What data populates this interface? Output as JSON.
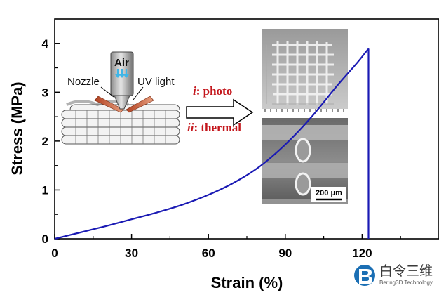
{
  "chart_data": {
    "type": "line",
    "xlabel": "Strain (%)",
    "ylabel": "Stress (MPa)",
    "xlim": [
      0,
      150
    ],
    "ylim": [
      0,
      4.5
    ],
    "xticks": [
      0,
      30,
      60,
      90,
      120
    ],
    "yticks": [
      0,
      1,
      2,
      3,
      4
    ],
    "grid": false,
    "series": [
      {
        "color": "#1a1ab4",
        "x": [
          0,
          10,
          20,
          30,
          40,
          50,
          60,
          70,
          80,
          90,
          100,
          110,
          118,
          122,
          122.5,
          122.5
        ],
        "y": [
          0,
          0.13,
          0.26,
          0.4,
          0.54,
          0.7,
          0.9,
          1.15,
          1.48,
          1.93,
          2.48,
          3.12,
          3.6,
          3.86,
          3.87,
          0
        ]
      }
    ]
  },
  "inset": {
    "labels": {
      "air": "Air",
      "nozzle": "Nozzle",
      "uv_light": "UV light",
      "photo_numeral": "i",
      "photo_text": ": photo",
      "thermal_numeral": "ii",
      "thermal_text": ": thermal"
    },
    "scale_bar": "200 μm"
  },
  "watermark": {
    "main": "白令三维",
    "sub": "Bering3D Technology",
    "icon": "bering3d-logo-icon"
  }
}
